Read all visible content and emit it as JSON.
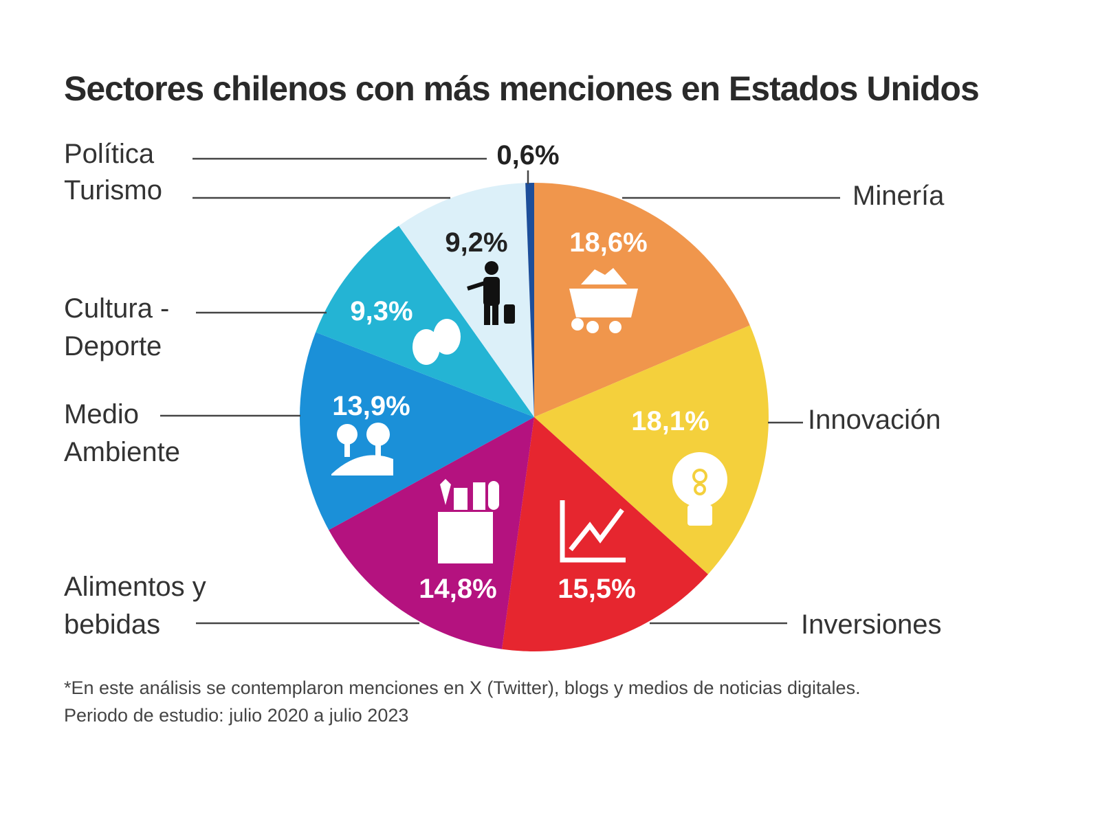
{
  "chart_data": {
    "type": "pie",
    "title": "Sectores chilenos con más menciones en Estados Unidos",
    "start": "top",
    "direction": "clockwise",
    "slices": [
      {
        "name": "Minería",
        "value": 18.6,
        "label": "18,6%",
        "color": "#f0964c",
        "text_color": "#ffffff",
        "icon": "mine-cart-icon"
      },
      {
        "name": "Innovación",
        "value": 18.1,
        "label": "18,1%",
        "color": "#f4d03c",
        "text_color": "#ffffff",
        "icon": "lightbulb-icon"
      },
      {
        "name": "Inversiones",
        "value": 15.5,
        "label": "15,5%",
        "color": "#e6262f",
        "text_color": "#ffffff",
        "icon": "growth-chart-icon"
      },
      {
        "name": "Alimentos y bebidas",
        "value": 14.8,
        "label": "14,8%",
        "color": "#b4127f",
        "text_color": "#ffffff",
        "icon": "grocery-bag-icon"
      },
      {
        "name": "Medio Ambiente",
        "value": 13.9,
        "label": "13,9%",
        "color": "#1b90d8",
        "text_color": "#ffffff",
        "icon": "trees-icon"
      },
      {
        "name": "Cultura-Deporte",
        "value": 9.3,
        "label": "9,3%",
        "color": "#24b4d4",
        "text_color": "#ffffff",
        "icon": "theater-masks-icon"
      },
      {
        "name": "Turismo",
        "value": 9.2,
        "label": "9,2%",
        "color": "#dcf0f9",
        "text_color": "#222222",
        "icon": "traveler-icon"
      },
      {
        "name": "Política",
        "value": 0.6,
        "label": "0,6%",
        "color": "#1d4e9a",
        "text_color": "#222222",
        "icon": ""
      }
    ]
  },
  "legend_labels": {
    "politica": "Política",
    "turismo": "Turismo",
    "cultura": "Cultura -\nDeporte",
    "medio": "Medio\nAmbiente",
    "alimentos": "Alimentos y\nbebidas",
    "mineria": "Minería",
    "innovacion": "Innovación",
    "inversiones": "Inversiones"
  },
  "footnote": {
    "line1": "*En este análisis se contemplaron menciones en X (Twitter), blogs y medios de noticias digitales.",
    "line2": "Periodo de estudio: julio 2020 a julio 2023"
  }
}
